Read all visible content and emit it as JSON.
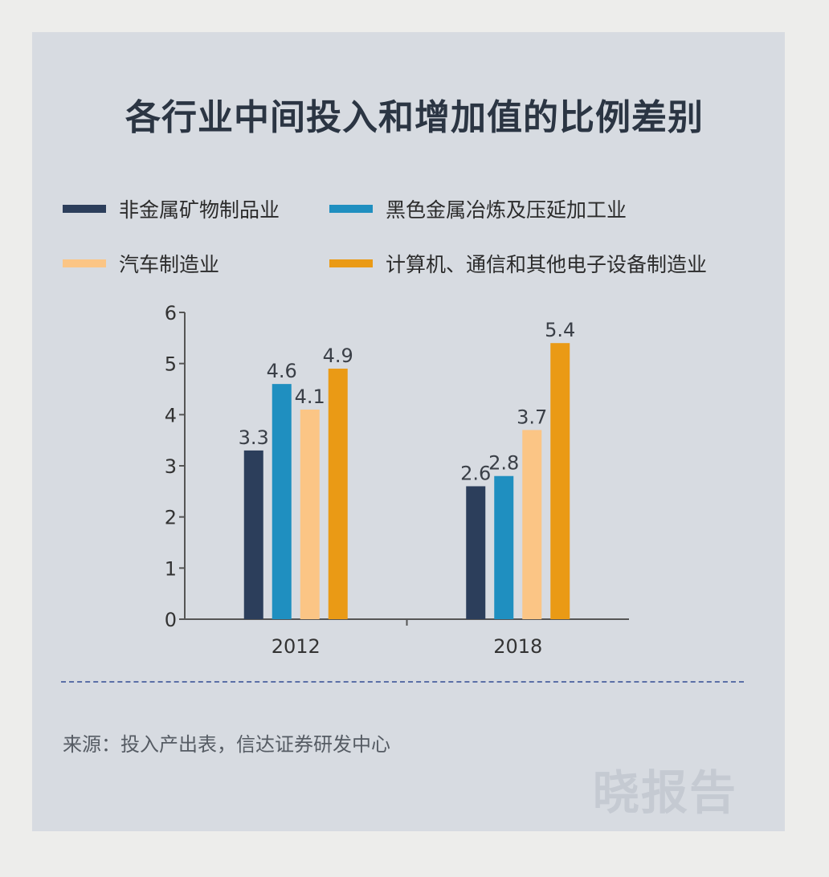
{
  "title": "各行业中间投入和增加值的比例差别",
  "source": "来源：投入产出表，信达证券研发中心",
  "watermark": "晓报告",
  "chart_data": {
    "type": "bar",
    "title": "各行业中间投入和增加值的比例差别",
    "xlabel": "",
    "ylabel": "",
    "categories": [
      "2012",
      "2018"
    ],
    "ylim": [
      0,
      6
    ],
    "yticks": [
      0,
      1,
      2,
      3,
      4,
      5,
      6
    ],
    "grid": false,
    "legend_position": "top",
    "series": [
      {
        "name": "非金属矿物制品业",
        "values": [
          3.3,
          2.6
        ],
        "color": "#2c3e5b"
      },
      {
        "name": "黑色金属冶炼及压延加工业",
        "values": [
          4.6,
          2.8
        ],
        "color": "#1f8fc0"
      },
      {
        "name": "汽车制造业",
        "values": [
          4.1,
          3.7
        ],
        "color": "#fbc585"
      },
      {
        "name": "计算机、通信和其他电子设备制造业",
        "values": [
          4.9,
          5.4
        ],
        "color": "#ea9a15"
      }
    ]
  }
}
